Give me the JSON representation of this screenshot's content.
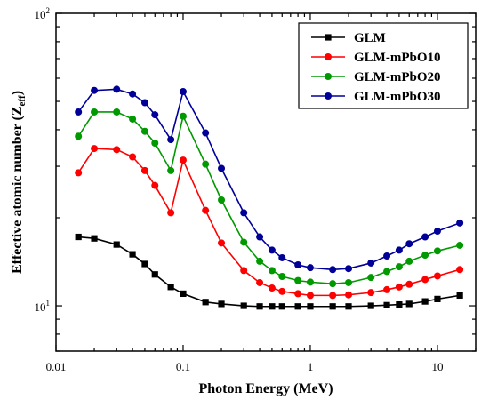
{
  "chart_data": {
    "type": "line",
    "xlabel": "Photon Energy (MeV)",
    "ylabel": {
      "main": "Effective atomic number (Z",
      "sub": "eff",
      "close": ")"
    },
    "xscale": "log",
    "yscale": "log",
    "xlim": [
      0.01,
      20
    ],
    "ylim": [
      7,
      100
    ],
    "x_ticks": [
      {
        "value": 0.01,
        "label": "0.01"
      },
      {
        "value": 0.1,
        "label": "0.1"
      },
      {
        "value": 1,
        "label": "1"
      },
      {
        "value": 10,
        "label": "10"
      }
    ],
    "y_ticks": [
      {
        "value": 10,
        "base": "10",
        "exp": "1"
      },
      {
        "value": 100,
        "base": "10",
        "exp": "2"
      }
    ],
    "legend_position": "top-right",
    "x": [
      0.015,
      0.02,
      0.03,
      0.04,
      0.05,
      0.06,
      0.08,
      0.1,
      0.15,
      0.2,
      0.3,
      0.4,
      0.5,
      0.6,
      0.8,
      1,
      1.5,
      2,
      3,
      4,
      5,
      6,
      8,
      10,
      15
    ],
    "series": [
      {
        "name": "GLM",
        "color": "#000000",
        "marker": "square",
        "values": [
          17.2,
          17.0,
          16.2,
          15.0,
          13.9,
          12.8,
          11.6,
          11.0,
          10.3,
          10.15,
          10.0,
          9.95,
          9.95,
          9.95,
          9.95,
          9.95,
          9.95,
          9.95,
          10.0,
          10.05,
          10.1,
          10.15,
          10.35,
          10.55,
          10.85
        ]
      },
      {
        "name": "GLM-mPbO10",
        "color": "#ff0000",
        "marker": "circle",
        "values": [
          28.5,
          34.5,
          34.2,
          32.3,
          29.0,
          25.8,
          20.8,
          31.5,
          21.2,
          16.4,
          13.2,
          12.0,
          11.5,
          11.2,
          11.0,
          10.85,
          10.85,
          10.9,
          11.1,
          11.35,
          11.6,
          11.85,
          12.3,
          12.65,
          13.3
        ]
      },
      {
        "name": "GLM-mPbO20",
        "color": "#009900",
        "marker": "circle",
        "values": [
          38.0,
          46.0,
          46.0,
          43.5,
          39.5,
          36.0,
          29.0,
          44.5,
          30.5,
          23.0,
          16.5,
          14.2,
          13.2,
          12.6,
          12.2,
          12.05,
          11.9,
          12.0,
          12.5,
          13.1,
          13.6,
          14.2,
          14.9,
          15.4,
          16.1
        ]
      },
      {
        "name": "GLM-mPbO30",
        "color": "#000099",
        "marker": "circle",
        "values": [
          46.0,
          54.5,
          55.0,
          53.0,
          49.5,
          45.0,
          37.0,
          54.0,
          39.0,
          29.5,
          20.8,
          17.2,
          15.5,
          14.6,
          13.8,
          13.5,
          13.3,
          13.4,
          14.0,
          14.8,
          15.5,
          16.3,
          17.2,
          18.0,
          19.2
        ]
      }
    ]
  }
}
